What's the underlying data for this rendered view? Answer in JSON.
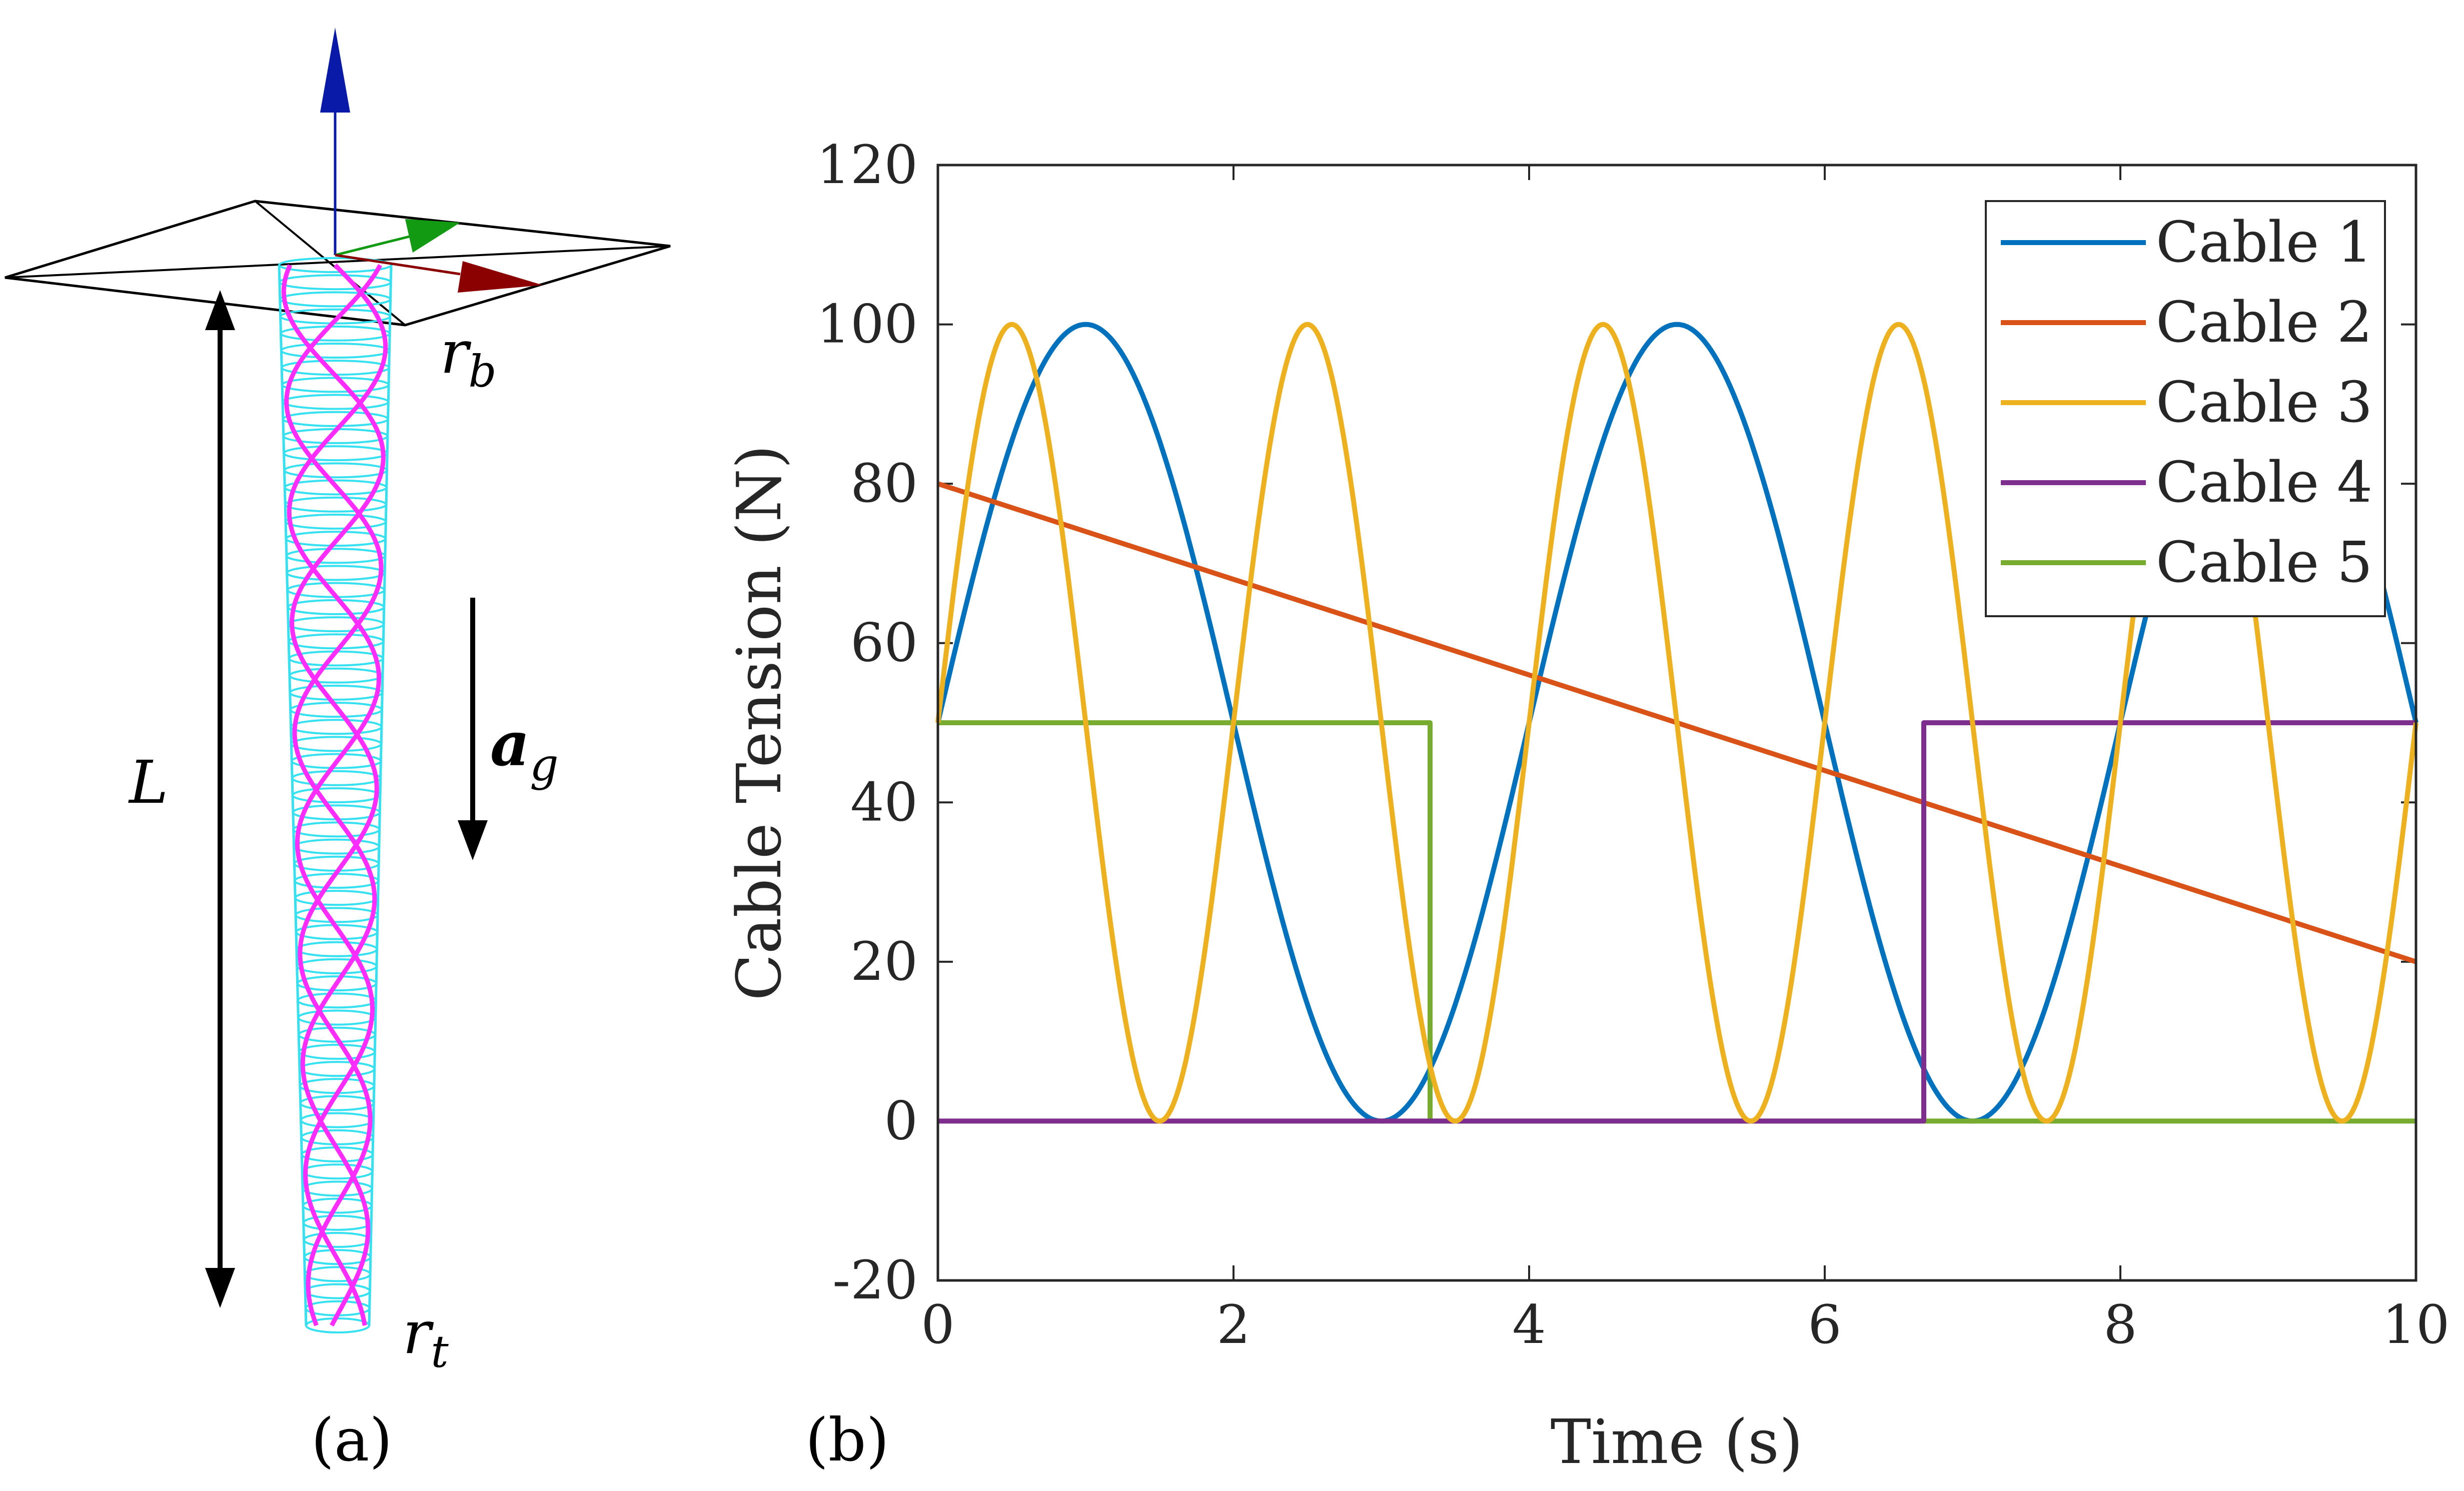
{
  "panel_a": {
    "label": "(a)",
    "symbols": {
      "L": "L",
      "rb_main": "r",
      "rb_sub": "b",
      "rt_main": "r",
      "rt_sub": "t",
      "ag_main": "a",
      "ag_sub": "g"
    },
    "colors": {
      "tube": "#35e0f0",
      "helix": "#ff2cff",
      "z_axis": "#0a1aa8",
      "y_axis": "#129a12",
      "x_axis": "#8b0000"
    }
  },
  "panel_b": {
    "label": "(b)"
  },
  "chart_data": {
    "type": "line",
    "xlabel": "Time (s)",
    "ylabel": "Cable Tension (N)",
    "xlim": [
      0,
      10
    ],
    "ylim": [
      -20,
      120
    ],
    "xticks": [
      0,
      2,
      4,
      6,
      8,
      10
    ],
    "yticks": [
      -20,
      0,
      20,
      40,
      60,
      80,
      100,
      120
    ],
    "grid": false,
    "legend_position": "top-right",
    "series": [
      {
        "name": "Cable 1",
        "color": "#0072BD",
        "kind": "sine",
        "offset": 50,
        "amplitude": 50,
        "period_s": 4,
        "x": [
          0,
          1,
          2,
          3,
          4,
          5,
          6,
          7,
          8,
          9,
          10
        ],
        "y": [
          50,
          100,
          50,
          0,
          50,
          100,
          50,
          0,
          50,
          100,
          50
        ]
      },
      {
        "name": "Cable 2",
        "color": "#D95319",
        "kind": "linear",
        "x": [
          0,
          10
        ],
        "y": [
          80,
          20
        ]
      },
      {
        "name": "Cable 3",
        "color": "#EDB120",
        "kind": "sine",
        "offset": 50,
        "amplitude": 50,
        "period_s": 2,
        "x": [
          0,
          0.5,
          1,
          1.5,
          2,
          2.5,
          3,
          3.5,
          4,
          4.5,
          5,
          5.5,
          6,
          6.5,
          7,
          7.5,
          8,
          8.5,
          9,
          9.5,
          10
        ],
        "y": [
          50,
          100,
          50,
          0,
          50,
          100,
          50,
          0,
          50,
          100,
          50,
          0,
          50,
          100,
          50,
          0,
          50,
          100,
          50,
          0,
          50
        ]
      },
      {
        "name": "Cable 4",
        "color": "#7E2F8E",
        "kind": "step",
        "x": [
          0,
          6.67,
          6.67,
          10
        ],
        "y": [
          0,
          0,
          50,
          50
        ]
      },
      {
        "name": "Cable 5",
        "color": "#77AC30",
        "kind": "step",
        "x": [
          0,
          3.33,
          3.33,
          10
        ],
        "y": [
          50,
          50,
          0,
          0
        ]
      }
    ]
  }
}
